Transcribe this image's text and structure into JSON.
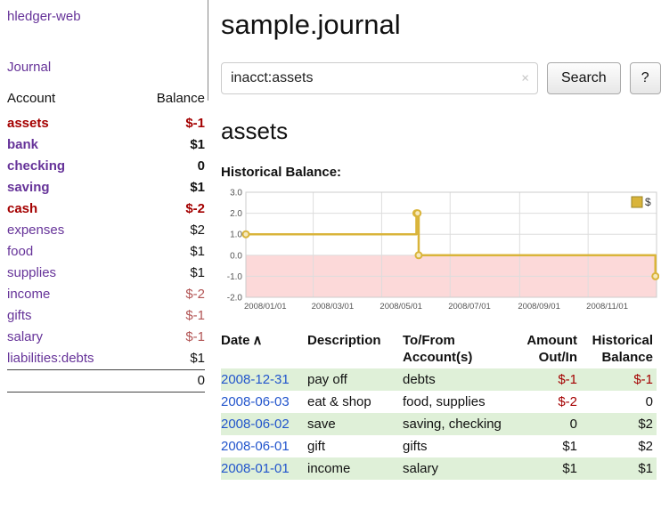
{
  "colors": {
    "link_purple": "#663399",
    "date_link_blue": "#2255cc",
    "negative_red": "#a40000",
    "soft_negative_red": "#b25454",
    "row_highlight_green": "#dff0d8",
    "chart_line_gold": "#d9b43a",
    "chart_negative_region": "#fcd9d9"
  },
  "sidebar": {
    "brand": "hledger-web",
    "journal_link": "Journal",
    "accounts_table": {
      "headers": {
        "account": "Account",
        "balance": "Balance"
      },
      "rows": [
        {
          "name": "assets",
          "balance": "$-1"
        },
        {
          "name": "bank",
          "balance": "$1"
        },
        {
          "name": "checking",
          "balance": "0"
        },
        {
          "name": "saving",
          "balance": "$1"
        },
        {
          "name": "cash",
          "balance": "$-2"
        },
        {
          "name": "expenses",
          "balance": "$2"
        },
        {
          "name": "food",
          "balance": "$1"
        },
        {
          "name": "supplies",
          "balance": "$1"
        },
        {
          "name": "income",
          "balance": "$-2"
        },
        {
          "name": "gifts",
          "balance": "$-1"
        },
        {
          "name": "salary",
          "balance": "$-1"
        },
        {
          "name": "liabilities:debts",
          "balance": "$1"
        }
      ],
      "total": "0"
    }
  },
  "main": {
    "title": "sample.journal",
    "search": {
      "value": "inacct:assets",
      "clear_icon": "×",
      "search_button": "Search",
      "help_button": "?"
    },
    "account_heading": "assets"
  },
  "chart_data": {
    "type": "line",
    "title": "Historical Balance:",
    "x_start": "2008-01-01",
    "x_end": "2009-01-01",
    "ylim": [
      -2.0,
      3.0
    ],
    "yticks": [
      3.0,
      2.0,
      1.0,
      0.0,
      -1.0,
      -2.0
    ],
    "xticks": [
      "2008/01/01",
      "2008/03/01",
      "2008/05/01",
      "2008/07/01",
      "2008/09/01",
      "2008/11/01"
    ],
    "series": [
      {
        "name": "$",
        "points": [
          [
            "2008-01-01",
            1
          ],
          [
            "2008-06-01",
            2
          ],
          [
            "2008-06-02",
            2
          ],
          [
            "2008-06-03",
            0
          ],
          [
            "2008-12-31",
            -1
          ]
        ]
      }
    ],
    "line_color": "#d9b43a",
    "marker_fill": "#f6e9bd",
    "negative_region_color": "#fcd9d9",
    "grid_color": "#dddddd",
    "legend_position": "top-right"
  },
  "register": {
    "headers": {
      "date": "Date",
      "sort_indicator": "∧",
      "description": "Description",
      "accounts": "To/From Account(s)",
      "amount": "Amount Out/In",
      "balance": "Historical Balance"
    },
    "rows": [
      {
        "date": "2008-12-31",
        "description": "pay off",
        "accounts": "debts",
        "amount": "$-1",
        "balance": "$-1"
      },
      {
        "date": "2008-06-03",
        "description": "eat & shop",
        "accounts": "food, supplies",
        "amount": "$-2",
        "balance": "0"
      },
      {
        "date": "2008-06-02",
        "description": "save",
        "accounts": "saving, checking",
        "amount": "0",
        "balance": "$2"
      },
      {
        "date": "2008-06-01",
        "description": "gift",
        "accounts": "gifts",
        "amount": "$1",
        "balance": "$2"
      },
      {
        "date": "2008-01-01",
        "description": "income",
        "accounts": "salary",
        "amount": "$1",
        "balance": "$1"
      }
    ]
  }
}
